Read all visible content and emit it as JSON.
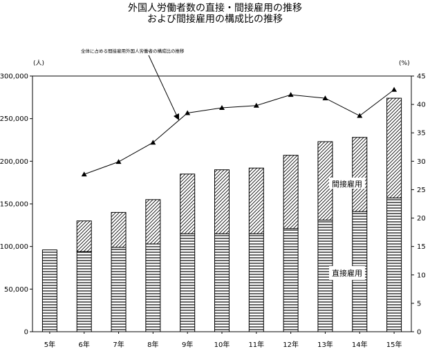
{
  "chart_data": {
    "type": "bar",
    "title_line1": "外国人労働者数の直接・間接雇用の推移",
    "title_line2": "および間接雇用の構成比の推移",
    "annotation": "全体に占める間接雇用外国人労働者の構成比の推移",
    "left_unit": "(人)",
    "right_unit": "(%)",
    "categories": [
      "5年",
      "6年",
      "7年",
      "8年",
      "9年",
      "10年",
      "11年",
      "12年",
      "13年",
      "14年",
      "15年"
    ],
    "ylim": [
      0,
      300000
    ],
    "y2lim": [
      0,
      45
    ],
    "yticks": [
      "0",
      "50,000",
      "100,000",
      "150,000",
      "200,000",
      "250,000",
      "300,000"
    ],
    "y2ticks": [
      "0",
      "5",
      "10",
      "15",
      "20",
      "25",
      "30",
      "35",
      "40",
      "45"
    ],
    "series": [
      {
        "name": "直接雇用",
        "values": [
          96000,
          94000,
          99000,
          103000,
          115000,
          115000,
          115000,
          121000,
          131000,
          141000,
          157000
        ]
      },
      {
        "name": "間接雇用",
        "values": [
          0,
          36000,
          41000,
          52000,
          70000,
          75000,
          77000,
          86000,
          92000,
          87000,
          117000
        ]
      },
      {
        "name": "構成比",
        "values": [
          null,
          27.7,
          29.9,
          33.3,
          38.5,
          39.4,
          39.8,
          41.7,
          41.1,
          38.0,
          42.6
        ]
      }
    ],
    "labels": {
      "indirect": "間接雇用",
      "direct": "直接雇用"
    }
  }
}
